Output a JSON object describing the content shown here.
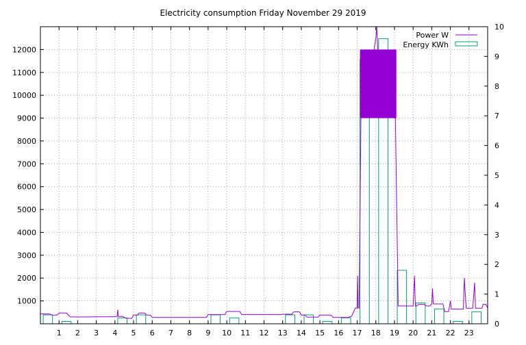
{
  "chart_data": {
    "type": "bar",
    "title": "Electricity consumption Friday November 29 2019",
    "xlabel": "",
    "ylabel": "",
    "y2label": "",
    "grid": true,
    "legend_position": "top-right",
    "x_ticks": [
      "1",
      "2",
      "3",
      "4",
      "5",
      "6",
      "7",
      "8",
      "9",
      "10",
      "11",
      "12",
      "13",
      "14",
      "15",
      "16",
      "17",
      "18",
      "19",
      "20",
      "21",
      "22",
      "23"
    ],
    "xlim": [
      0,
      24
    ],
    "ylim": [
      0,
      13000
    ],
    "y_ticks": [
      1000,
      2000,
      3000,
      4000,
      5000,
      6000,
      7000,
      8000,
      9000,
      10000,
      11000,
      12000
    ],
    "y2lim": [
      0,
      10
    ],
    "y2_ticks": [
      0,
      1,
      2,
      3,
      4,
      5,
      6,
      7,
      8,
      9,
      10
    ],
    "colors": {
      "power": "#9400d3",
      "energy": "#009e73"
    },
    "series": [
      {
        "name": "Power W",
        "axis": "left",
        "kind": "line",
        "points": [
          [
            0,
            430
          ],
          [
            0.5,
            430
          ],
          [
            0.6,
            380
          ],
          [
            0.9,
            380
          ],
          [
            1.0,
            470
          ],
          [
            1.4,
            470
          ],
          [
            1.6,
            300
          ],
          [
            2.5,
            300
          ],
          [
            3.0,
            310
          ],
          [
            3.9,
            310
          ],
          [
            4.0,
            320
          ],
          [
            4.12,
            320
          ],
          [
            4.15,
            620
          ],
          [
            4.18,
            320
          ],
          [
            4.4,
            320
          ],
          [
            4.6,
            240
          ],
          [
            4.9,
            240
          ],
          [
            5.0,
            380
          ],
          [
            5.2,
            380
          ],
          [
            5.3,
            470
          ],
          [
            5.6,
            470
          ],
          [
            5.7,
            380
          ],
          [
            5.9,
            380
          ],
          [
            6.0,
            280
          ],
          [
            8.9,
            280
          ],
          [
            9.0,
            400
          ],
          [
            9.9,
            400
          ],
          [
            10.0,
            540
          ],
          [
            10.7,
            540
          ],
          [
            10.8,
            400
          ],
          [
            12.9,
            400
          ],
          [
            13.0,
            420
          ],
          [
            13.5,
            420
          ],
          [
            13.6,
            520
          ],
          [
            13.9,
            520
          ],
          [
            14.0,
            380
          ],
          [
            14.2,
            380
          ],
          [
            14.3,
            290
          ],
          [
            14.9,
            290
          ],
          [
            15.0,
            380
          ],
          [
            15.6,
            380
          ],
          [
            15.7,
            280
          ],
          [
            16.5,
            280
          ],
          [
            16.7,
            330
          ],
          [
            16.9,
            690
          ],
          [
            17.0,
            690
          ],
          [
            17.02,
            2100
          ],
          [
            17.05,
            690
          ],
          [
            17.1,
            690
          ],
          [
            17.2,
            9000
          ],
          [
            17.4,
            12000
          ],
          [
            17.5,
            9000
          ],
          [
            17.6,
            12000
          ],
          [
            17.7,
            9000
          ],
          [
            17.9,
            12000
          ],
          [
            18.0,
            12500
          ],
          [
            18.05,
            13000
          ],
          [
            18.1,
            12000
          ],
          [
            18.3,
            9000
          ],
          [
            18.5,
            12000
          ],
          [
            18.7,
            9000
          ],
          [
            18.9,
            12000
          ],
          [
            19.0,
            9000
          ],
          [
            19.05,
            9000
          ],
          [
            19.2,
            780
          ],
          [
            19.9,
            780
          ],
          [
            20.0,
            780
          ],
          [
            20.08,
            2100
          ],
          [
            20.12,
            780
          ],
          [
            20.2,
            780
          ],
          [
            20.3,
            850
          ],
          [
            20.6,
            850
          ],
          [
            20.7,
            780
          ],
          [
            20.9,
            780
          ],
          [
            21.0,
            870
          ],
          [
            21.04,
            1550
          ],
          [
            21.08,
            870
          ],
          [
            21.6,
            870
          ],
          [
            21.7,
            530
          ],
          [
            21.9,
            530
          ],
          [
            22.0,
            1000
          ],
          [
            22.05,
            640
          ],
          [
            22.6,
            640
          ],
          [
            22.7,
            640
          ],
          [
            22.75,
            2000
          ],
          [
            22.8,
            1300
          ],
          [
            22.85,
            680
          ],
          [
            23.1,
            680
          ],
          [
            23.2,
            680
          ],
          [
            23.3,
            1800
          ],
          [
            23.35,
            680
          ],
          [
            23.7,
            680
          ],
          [
            23.75,
            850
          ],
          [
            23.9,
            850
          ],
          [
            24.0,
            700
          ]
        ]
      },
      {
        "name": "Energy KWh",
        "axis": "right",
        "kind": "bar",
        "categories": [
          0,
          1,
          2,
          3,
          4,
          5,
          6,
          7,
          8,
          9,
          10,
          11,
          12,
          13,
          14,
          15,
          16,
          17,
          18,
          19,
          20,
          21,
          22,
          23
        ],
        "values": [
          0.3,
          0.08,
          0,
          0,
          0.2,
          0.3,
          0,
          0,
          0,
          0.3,
          0.2,
          0,
          0,
          0.3,
          0.3,
          0.08,
          0.2,
          8.9,
          9.6,
          1.8,
          0.7,
          0.5,
          0.08,
          0.4
        ]
      }
    ]
  }
}
